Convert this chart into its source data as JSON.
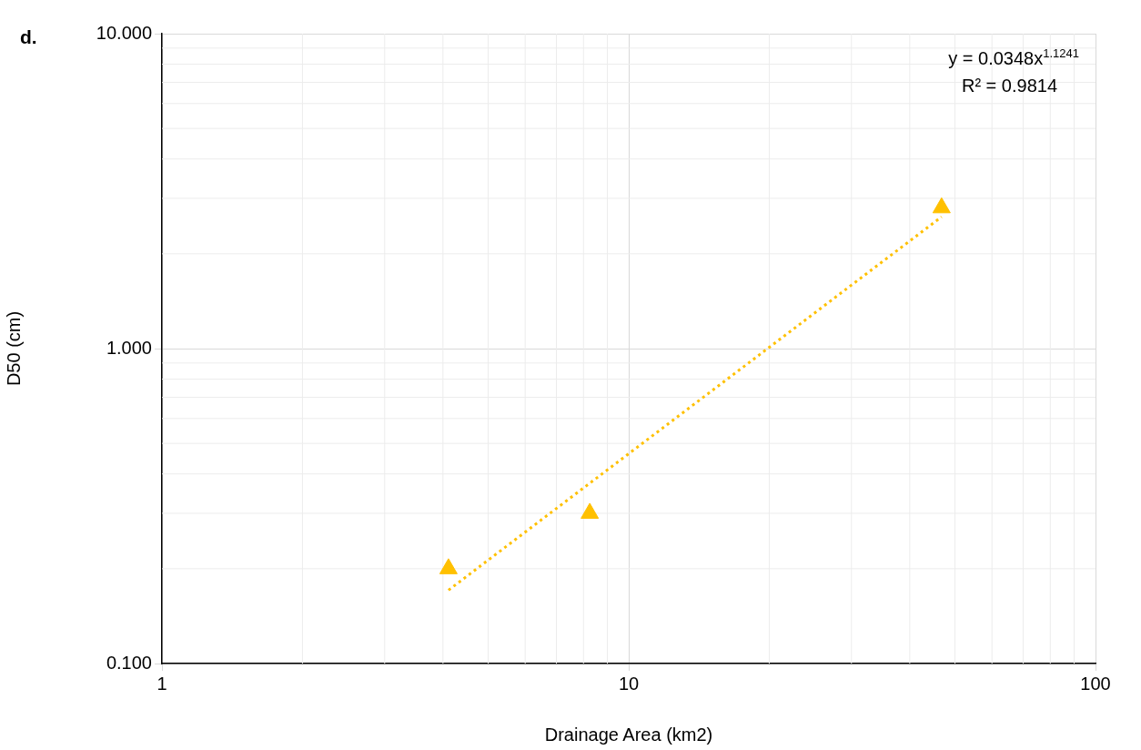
{
  "chart_data": {
    "type": "scatter",
    "xlabel": "Drainage Area (km2)",
    "ylabel": "D50 (cm)",
    "log": "xy",
    "xlim": [
      1,
      100
    ],
    "xticks": [
      1,
      10,
      100
    ],
    "ylim": [
      0.1,
      10
    ],
    "yticks": [
      {
        "value": 0.1,
        "label": "0.100"
      },
      {
        "value": 1,
        "label": "1.000"
      },
      {
        "value": 10,
        "label": "10.000"
      }
    ],
    "grid": true,
    "legend": false,
    "marker": "triangle",
    "series": [
      {
        "type": "scatter",
        "color": "#ffc000",
        "x": [
          4.11,
          8.25,
          46.8
        ],
        "values": [
          0.2,
          0.3,
          2.8
        ]
      },
      {
        "type": "line",
        "color": "#ffc000",
        "line_style": "dotted",
        "marker": "none",
        "x": [
          4.11,
          46.8
        ],
        "values": [
          0.171,
          2.62
        ]
      }
    ],
    "annotations": [
      "d.",
      "y = 0.0348x$^{1.1241}$",
      "R² = 0.9814"
    ]
  }
}
